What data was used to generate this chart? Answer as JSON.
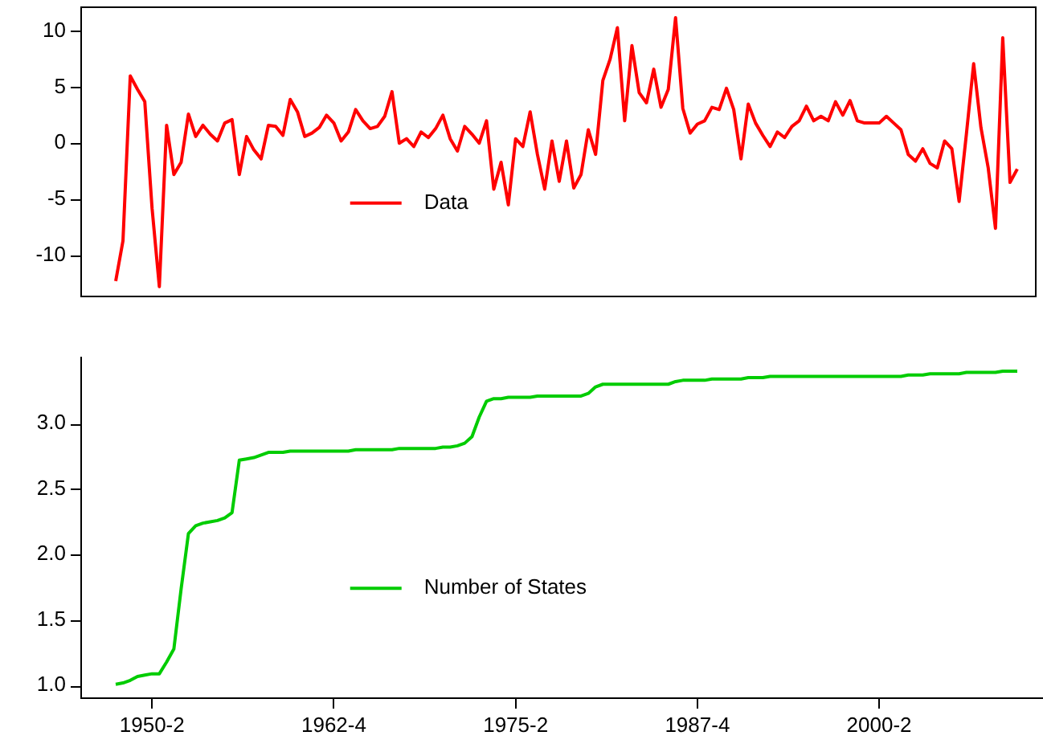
{
  "chart_data": [
    {
      "type": "line",
      "categories": [
        null,
        null,
        null,
        null,
        null,
        "1950-2",
        null,
        null,
        null,
        null,
        null,
        null,
        null,
        null,
        null,
        null,
        null,
        null,
        null,
        null,
        null,
        null,
        null,
        null,
        null,
        null,
        null,
        null,
        null,
        null,
        "1962-4",
        null,
        null,
        null,
        null,
        null,
        null,
        null,
        null,
        null,
        null,
        null,
        null,
        null,
        null,
        null,
        null,
        null,
        null,
        null,
        null,
        null,
        null,
        null,
        null,
        "1975-2",
        null,
        null,
        null,
        null,
        null,
        null,
        null,
        null,
        null,
        null,
        null,
        null,
        null,
        null,
        null,
        null,
        null,
        null,
        null,
        null,
        null,
        null,
        null,
        null,
        "1987-4",
        null,
        null,
        null,
        null,
        null,
        null,
        null,
        null,
        null,
        null,
        null,
        null,
        null,
        null,
        null,
        null,
        null,
        null,
        null,
        null,
        null,
        null,
        null,
        null,
        "2000-2",
        null,
        null,
        null,
        null,
        null,
        null,
        null,
        null,
        null,
        null,
        null,
        null,
        null,
        null,
        null,
        null,
        null,
        null,
        null
      ],
      "series": [
        {
          "name": "Data",
          "color": "#ff0000",
          "values": [
            -12.3,
            -8.7,
            6.0,
            4.8,
            3.7,
            -5.8,
            -12.8,
            1.6,
            -2.8,
            -1.7,
            2.6,
            0.6,
            1.6,
            0.8,
            0.2,
            1.8,
            2.1,
            -2.8,
            0.6,
            -0.6,
            -1.4,
            1.6,
            1.5,
            0.7,
            3.9,
            2.8,
            0.6,
            0.9,
            1.4,
            2.5,
            1.8,
            0.2,
            1.0,
            3.0,
            2.0,
            1.3,
            1.5,
            2.4,
            4.6,
            0,
            0.4,
            -0.3,
            1.0,
            0.5,
            1.3,
            2.5,
            0.4,
            -0.7,
            1.5,
            0.8,
            0,
            2.0,
            -4.1,
            -1.7,
            -5.5,
            0.4,
            -0.3,
            2.8,
            -1.0,
            -4.1,
            0.2,
            -3.4,
            0.2,
            -4.0,
            -2.8,
            1.2,
            -1.0,
            5.6,
            7.5,
            10.3,
            2.0,
            8.7,
            4.5,
            3.6,
            6.6,
            3.2,
            4.8,
            11.2,
            3.1,
            0.9,
            1.7,
            2.0,
            3.2,
            3.0,
            4.9,
            3.0,
            -1.4,
            3.5,
            1.8,
            0.7,
            -0.3,
            1.0,
            0.5,
            1.5,
            2.0,
            3.3,
            2.0,
            2.4,
            2.0,
            3.7,
            2.5,
            3.8,
            2.0,
            1.8,
            1.8,
            1.8,
            2.4,
            1.8,
            1.2,
            -1.0,
            -1.6,
            -0.5,
            -1.8,
            -2.2,
            0.2,
            -0.5,
            -5.2,
            0.8,
            7.1,
            1.4,
            -2.2,
            -7.6,
            9.4,
            -3.5,
            -2.3
          ]
        }
      ],
      "ylim": [
        -13.6,
        12.2
      ],
      "yticks": [
        -10,
        -5,
        0,
        5,
        10
      ],
      "legend": "center",
      "tick_labels": "y"
    },
    {
      "type": "line",
      "categories": [
        null,
        null,
        null,
        null,
        null,
        "1950-2",
        null,
        null,
        null,
        null,
        null,
        null,
        null,
        null,
        null,
        null,
        null,
        null,
        null,
        null,
        null,
        null,
        null,
        null,
        null,
        null,
        null,
        null,
        null,
        null,
        "1962-4",
        null,
        null,
        null,
        null,
        null,
        null,
        null,
        null,
        null,
        null,
        null,
        null,
        null,
        null,
        null,
        null,
        null,
        null,
        null,
        null,
        null,
        null,
        null,
        null,
        "1975-2",
        null,
        null,
        null,
        null,
        null,
        null,
        null,
        null,
        null,
        null,
        null,
        null,
        null,
        null,
        null,
        null,
        null,
        null,
        null,
        null,
        null,
        null,
        null,
        null,
        "1987-4",
        null,
        null,
        null,
        null,
        null,
        null,
        null,
        null,
        null,
        null,
        null,
        null,
        null,
        null,
        null,
        null,
        null,
        null,
        null,
        null,
        null,
        null,
        null,
        null,
        "2000-2",
        null,
        null,
        null,
        null,
        null,
        null,
        null,
        null,
        null,
        null,
        null,
        null,
        null,
        null,
        null,
        null,
        null,
        null,
        null
      ],
      "series": [
        {
          "name": "Number of States",
          "color": "#00cc00",
          "values": [
            1.01,
            1.02,
            1.04,
            1.07,
            1.08,
            1.09,
            1.09,
            1.18,
            1.28,
            1.74,
            2.16,
            2.22,
            2.24,
            2.25,
            2.26,
            2.28,
            2.32,
            2.72,
            2.73,
            2.74,
            2.76,
            2.78,
            2.78,
            2.78,
            2.79,
            2.79,
            2.79,
            2.79,
            2.79,
            2.79,
            2.79,
            2.79,
            2.79,
            2.8,
            2.8,
            2.8,
            2.8,
            2.8,
            2.8,
            2.81,
            2.81,
            2.81,
            2.81,
            2.81,
            2.81,
            2.82,
            2.82,
            2.83,
            2.85,
            2.9,
            3.05,
            3.17,
            3.19,
            3.19,
            3.2,
            3.2,
            3.2,
            3.2,
            3.21,
            3.21,
            3.21,
            3.21,
            3.21,
            3.21,
            3.21,
            3.23,
            3.28,
            3.3,
            3.3,
            3.3,
            3.3,
            3.3,
            3.3,
            3.3,
            3.3,
            3.3,
            3.3,
            3.32,
            3.33,
            3.33,
            3.33,
            3.33,
            3.34,
            3.34,
            3.34,
            3.34,
            3.34,
            3.35,
            3.35,
            3.35,
            3.36,
            3.36,
            3.36,
            3.36,
            3.36,
            3.36,
            3.36,
            3.36,
            3.36,
            3.36,
            3.36,
            3.36,
            3.36,
            3.36,
            3.36,
            3.36,
            3.36,
            3.36,
            3.36,
            3.37,
            3.37,
            3.37,
            3.38,
            3.38,
            3.38,
            3.38,
            3.38,
            3.39,
            3.39,
            3.39,
            3.39,
            3.39,
            3.4,
            3.4,
            3.4
          ]
        }
      ],
      "ylim": [
        0.91,
        3.51
      ],
      "yticks": [
        {
          "value": 1,
          "label": "1.0"
        },
        {
          "value": 1.5,
          "label": "1.5"
        },
        {
          "value": 2,
          "label": "2.0"
        },
        {
          "value": 2.5,
          "label": "2.5"
        },
        {
          "value": 3,
          "label": "3.0"
        }
      ],
      "legend": "center"
    }
  ]
}
